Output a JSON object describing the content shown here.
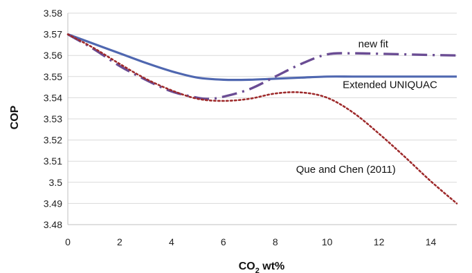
{
  "chart_data": {
    "type": "line",
    "title": "",
    "xlabel": "CO",
    "xlabel_sub": "2",
    "xlabel_suffix": " wt%",
    "ylabel": "COP",
    "xlim": [
      0,
      15
    ],
    "ylim": [
      3.48,
      3.58
    ],
    "xticks": [
      0,
      2,
      4,
      6,
      8,
      10,
      12,
      14
    ],
    "yticks": [
      3.48,
      3.49,
      3.5,
      3.51,
      3.52,
      3.53,
      3.54,
      3.55,
      3.56,
      3.57,
      3.58
    ],
    "grid": "horizontal",
    "series": [
      {
        "name": "Extended UNIQUAC",
        "color": "#4f67b0",
        "style": "solid",
        "x": [
          0,
          1,
          2,
          3,
          4,
          5,
          6,
          7,
          8,
          9,
          10,
          11,
          12,
          13,
          14,
          15
        ],
        "y": [
          3.57,
          3.5655,
          3.561,
          3.5565,
          3.5525,
          3.5495,
          3.5485,
          3.5485,
          3.549,
          3.5495,
          3.55,
          3.55,
          3.55,
          3.55,
          3.55,
          3.55
        ]
      },
      {
        "name": "new fit",
        "color": "#6a4c93",
        "style": "dashdot",
        "x": [
          0,
          1,
          2,
          3,
          4,
          5,
          5.5,
          6,
          7,
          8,
          9,
          10,
          11,
          12,
          13,
          14,
          15
        ],
        "y": [
          3.57,
          3.563,
          3.555,
          3.5485,
          3.543,
          3.54,
          3.5395,
          3.5405,
          3.544,
          3.55,
          3.556,
          3.5605,
          3.561,
          3.5608,
          3.5605,
          3.5602,
          3.56
        ]
      },
      {
        "name": "Que and Chen (2011)",
        "color": "#9e2a2b",
        "style": "dotted",
        "x": [
          0,
          1,
          2,
          3,
          4,
          5,
          6,
          7,
          8,
          9,
          10,
          11,
          12,
          13,
          14,
          15
        ],
        "y": [
          3.57,
          3.5635,
          3.556,
          3.549,
          3.5435,
          3.5395,
          3.5385,
          3.5395,
          3.542,
          3.5425,
          3.54,
          3.533,
          3.523,
          3.512,
          3.5005,
          3.49
        ]
      }
    ],
    "annotations": [
      {
        "text": "new fit",
        "x": 11.2,
        "y": 3.5638
      },
      {
        "text": "Extended UNIQUAC",
        "x": 10.6,
        "y": 3.5445
      },
      {
        "text": "Que and Chen (2011)",
        "x": 8.8,
        "y": 3.5045
      }
    ]
  }
}
